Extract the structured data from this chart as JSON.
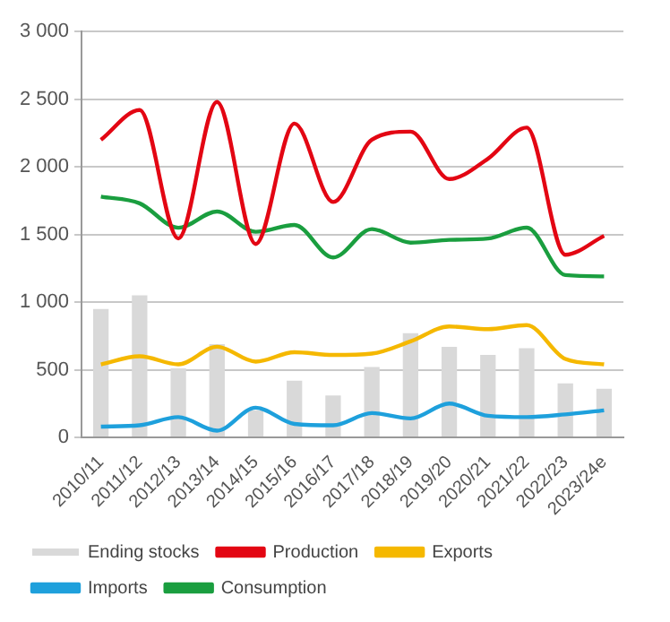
{
  "chart_data": {
    "type": "line",
    "categories": [
      "2010/11",
      "2011/12",
      "2012/13",
      "2013/14",
      "2014/15",
      "2015/16",
      "2016/17",
      "2017/18",
      "2018/19",
      "2019/20",
      "2020/21",
      "2021/22",
      "2022/23",
      "2023/24e"
    ],
    "series": [
      {
        "name": "Ending stocks",
        "type": "bar",
        "color": "#d9d9d9",
        "values": [
          950,
          1050,
          510,
          690,
          200,
          420,
          310,
          520,
          770,
          670,
          610,
          660,
          400,
          360
        ]
      },
      {
        "name": "Production",
        "color": "#e30613",
        "values": [
          2200,
          2420,
          1470,
          2480,
          1430,
          2320,
          1740,
          2200,
          2260,
          1910,
          2060,
          2290,
          1350,
          1490
        ]
      },
      {
        "name": "Exports",
        "color": "#f5b800",
        "values": [
          540,
          600,
          540,
          670,
          560,
          630,
          610,
          620,
          710,
          820,
          800,
          830,
          580,
          540
        ]
      },
      {
        "name": "Imports",
        "color": "#1ea0dc",
        "values": [
          80,
          90,
          150,
          50,
          220,
          100,
          90,
          180,
          140,
          250,
          160,
          150,
          170,
          200
        ]
      },
      {
        "name": "Consumption",
        "color": "#1a9e3f",
        "values": [
          1780,
          1730,
          1550,
          1670,
          1520,
          1570,
          1330,
          1540,
          1440,
          1460,
          1470,
          1550,
          1200,
          1190
        ]
      }
    ],
    "ylim": [
      0,
      3000
    ],
    "yticks": [
      0,
      500,
      {
        "value": 1000,
        "label": "1 000"
      },
      {
        "value": 1500,
        "label": "1 500"
      },
      {
        "value": 2000,
        "label": "2 000"
      },
      {
        "value": 2500,
        "label": "2 500"
      },
      {
        "value": 3000,
        "label": "3 000"
      }
    ],
    "grid": "y",
    "legend": "bottom",
    "marker": "none"
  }
}
